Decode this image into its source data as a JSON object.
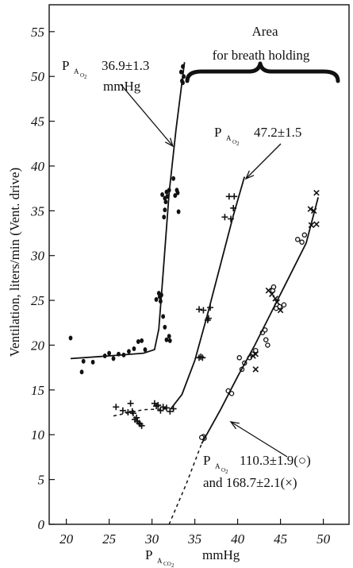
{
  "chart_data": {
    "type": "scatter",
    "xlabel": {
      "main": "P",
      "sub1": "A",
      "sub2": "CO",
      "sub3": "2",
      "unit": "mmHg"
    },
    "ylabel": "Ventilation, liters/min (Vent. drive)",
    "xlim": [
      18,
      53
    ],
    "ylim": [
      0,
      58
    ],
    "x_ticks": [
      20,
      25,
      30,
      35,
      40,
      45,
      50
    ],
    "y_ticks": [
      0,
      5,
      10,
      15,
      20,
      25,
      30,
      35,
      40,
      45,
      50,
      55
    ],
    "grid": false,
    "annotations": {
      "area_line1": "Area",
      "area_line2": "for breath holding",
      "s1_p": "P",
      "s1_sub_a": "A",
      "s1_sub_o": "O",
      "s1_sub_2": "2",
      "s1_value": "36.9±1.3",
      "s1_unit": "mmHg",
      "s2_p": "P",
      "s2_sub_a": "A",
      "s2_sub_o": "O",
      "s2_sub_2": "2",
      "s2_value": "47.2±1.5",
      "s3_p": "P",
      "s3_sub_a": "A",
      "s3_sub_o": "O",
      "s3_sub_2": "2",
      "s3_value": "110.3±1.9(○)",
      "s3_line2": "and  168.7±2.1(×)"
    },
    "series": [
      {
        "marker": "dot",
        "points": [
          [
            20.5,
            20.8
          ],
          [
            21.8,
            17.0
          ],
          [
            22,
            18.2
          ],
          [
            23.1,
            18.1
          ],
          [
            24.5,
            18.8
          ],
          [
            25,
            19.1
          ],
          [
            25.5,
            18.5
          ],
          [
            26.1,
            19.0
          ],
          [
            26.7,
            18.9
          ],
          [
            27.3,
            19.3
          ],
          [
            27.9,
            19.6
          ],
          [
            28.4,
            20.4
          ],
          [
            28.8,
            20.5
          ],
          [
            29.2,
            19.5
          ],
          [
            30.5,
            25.1
          ],
          [
            30.8,
            25.8
          ],
          [
            30.9,
            25.4
          ],
          [
            31,
            24.9
          ],
          [
            31.1,
            25.6
          ],
          [
            31.3,
            23.2
          ],
          [
            31.5,
            22.0
          ],
          [
            31.7,
            20.6
          ],
          [
            32.0,
            21.0
          ],
          [
            32.1,
            20.5
          ],
          [
            31.2,
            36.8
          ],
          [
            31.5,
            35.1
          ],
          [
            31.4,
            34.3
          ],
          [
            31.8,
            36.6
          ],
          [
            31.7,
            37.1
          ],
          [
            32.0,
            37.3
          ],
          [
            31.6,
            36.0
          ],
          [
            31.5,
            36.4
          ],
          [
            32.5,
            38.6
          ],
          [
            32.7,
            36.7
          ],
          [
            33.0,
            37.0
          ],
          [
            32.9,
            37.3
          ],
          [
            33.1,
            34.9
          ],
          [
            33.5,
            49.5
          ],
          [
            33.6,
            49.3
          ],
          [
            33.7,
            50.0
          ],
          [
            33.6,
            51.1
          ],
          [
            33.4,
            50.5
          ]
        ],
        "curve": [
          [
            20.5,
            18.5
          ],
          [
            25,
            18.8
          ],
          [
            29,
            19.1
          ],
          [
            30.3,
            19.5
          ],
          [
            30.8,
            21.8
          ],
          [
            31.3,
            28.0
          ],
          [
            32.0,
            37.0
          ],
          [
            32.8,
            44.0
          ],
          [
            33.8,
            51.6
          ]
        ]
      },
      {
        "marker": "plus",
        "points": [
          [
            25.8,
            13.1
          ],
          [
            26.6,
            12.7
          ],
          [
            27.2,
            12.5
          ],
          [
            27.5,
            13.5
          ],
          [
            27.7,
            12.6
          ],
          [
            27.8,
            12.4
          ],
          [
            28.0,
            11.7
          ],
          [
            28.2,
            11.9
          ],
          [
            28.3,
            11.5
          ],
          [
            28.5,
            11.3
          ],
          [
            28.6,
            11.2
          ],
          [
            28.8,
            11.0
          ],
          [
            30.3,
            13.5
          ],
          [
            30.5,
            13.2
          ],
          [
            30.7,
            13.3
          ],
          [
            31.0,
            12.7
          ],
          [
            31.3,
            13.1
          ],
          [
            31.7,
            13.0
          ],
          [
            32.1,
            12.6
          ],
          [
            32.5,
            12.9
          ],
          [
            35.5,
            18.6
          ],
          [
            35.7,
            18.7
          ],
          [
            35.9,
            18.6
          ],
          [
            35.5,
            24.0
          ],
          [
            36.0,
            23.9
          ],
          [
            36.5,
            22.8
          ],
          [
            36.8,
            24.2
          ],
          [
            36.6,
            23.0
          ],
          [
            38.5,
            34.3
          ],
          [
            39.2,
            34.1
          ],
          [
            39.0,
            36.6
          ],
          [
            39.6,
            36.6
          ],
          [
            39.5,
            35.3
          ]
        ],
        "curve": [
          [
            32.2,
            12.9
          ],
          [
            33.5,
            14.5
          ],
          [
            35.0,
            18.3
          ],
          [
            36.5,
            23.5
          ],
          [
            38.0,
            29.0
          ],
          [
            39.5,
            34.5
          ],
          [
            40.8,
            38.8
          ]
        ],
        "dashed": [
          [
            25.5,
            12.1
          ],
          [
            29.0,
            12.8
          ],
          [
            32.2,
            12.9
          ]
        ]
      },
      {
        "marker": "circle",
        "points": [
          [
            36.0,
            9.8
          ],
          [
            36.1,
            9.6
          ],
          [
            35.8,
            9.7
          ],
          [
            38.9,
            14.9
          ],
          [
            39.3,
            14.6
          ],
          [
            40.8,
            18.0
          ],
          [
            40.2,
            18.6
          ],
          [
            40.5,
            17.3
          ],
          [
            41.4,
            18.6
          ],
          [
            41.7,
            19.0
          ],
          [
            42.1,
            19.4
          ],
          [
            42.9,
            21.4
          ],
          [
            43.2,
            21.7
          ],
          [
            43.5,
            20.0
          ],
          [
            43.3,
            20.6
          ],
          [
            44.5,
            24.1
          ],
          [
            44.9,
            24.3
          ],
          [
            45.4,
            24.5
          ],
          [
            44.1,
            26.1
          ],
          [
            44.2,
            26.5
          ],
          [
            47.0,
            31.8
          ],
          [
            47.5,
            31.5
          ],
          [
            47.8,
            32.3
          ]
        ]
      },
      {
        "marker": "cross",
        "points": [
          [
            42.1,
            17.3
          ],
          [
            41.8,
            18.8
          ],
          [
            42.1,
            19.0
          ],
          [
            43.6,
            26.1
          ],
          [
            44.0,
            25.7
          ],
          [
            44.6,
            24.8
          ],
          [
            45.0,
            23.9
          ],
          [
            44.4,
            25.2
          ],
          [
            48.6,
            33.4
          ],
          [
            48.5,
            35.2
          ],
          [
            48.9,
            35.0
          ],
          [
            49.2,
            33.5
          ],
          [
            49.2,
            37.0
          ]
        ],
        "curve": [
          [
            35.8,
            9.0
          ],
          [
            38,
            12.8
          ],
          [
            40,
            16.5
          ],
          [
            42,
            20.0
          ],
          [
            44,
            23.8
          ],
          [
            46,
            27.6
          ],
          [
            48,
            31.4
          ],
          [
            49.4,
            36.5
          ]
        ],
        "dashed": [
          [
            32.0,
            0
          ],
          [
            34.0,
            4.5
          ],
          [
            35.8,
            9.0
          ]
        ]
      }
    ]
  }
}
